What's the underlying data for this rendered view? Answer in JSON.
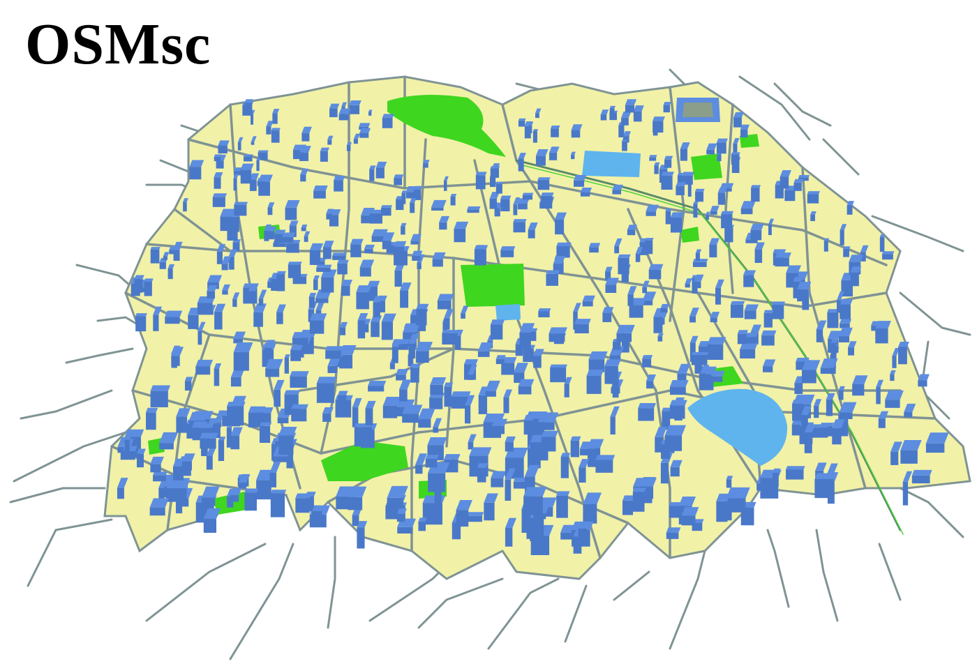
{
  "figure": {
    "title": "OSMsc"
  },
  "map": {
    "colors": {
      "background": "#ffffff",
      "land": "#f1f1a8",
      "roads": "#7f9394",
      "buildings": "#5c8de0",
      "parks": "#3fd61f",
      "water": "#5fb4ee",
      "stadium_field": "#8a9e8a"
    },
    "layers": [
      "roads",
      "land-blocks",
      "parks",
      "water",
      "buildings",
      "railway"
    ]
  }
}
